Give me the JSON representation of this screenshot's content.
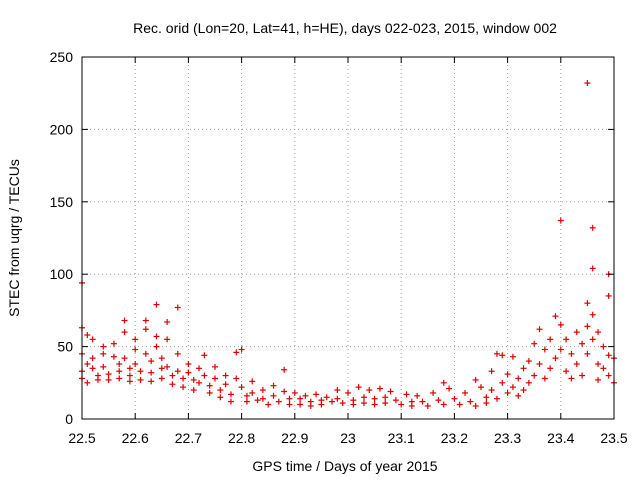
{
  "chart_data": {
    "type": "scatter",
    "title": "Rec. orid (Lon=20, Lat=41, h=HE), days 022-023, 2015, window 002",
    "xlabel": "GPS time / Days of year 2015",
    "ylabel": "STEC from uqrg / TECUs",
    "xlim": [
      22.5,
      23.5
    ],
    "ylim": [
      0,
      250
    ],
    "xticks": [
      "22.5",
      "22.6",
      "22.7",
      "22.8",
      "22.9",
      "23",
      "23.1",
      "23.2",
      "23.3",
      "23.4",
      "23.5"
    ],
    "yticks": [
      "0",
      "50",
      "100",
      "150",
      "200",
      "250"
    ],
    "xtick_values": [
      22.5,
      22.6,
      22.7,
      22.8,
      22.9,
      23.0,
      23.1,
      23.2,
      23.3,
      23.4,
      23.5
    ],
    "ytick_values": [
      0,
      50,
      100,
      150,
      200,
      250
    ],
    "grid": true,
    "marker": "+",
    "color": "#dd0000",
    "series": [
      {
        "values": [
          [
            22.5,
            94
          ],
          [
            22.5,
            63
          ],
          [
            22.51,
            58
          ],
          [
            22.5,
            45
          ],
          [
            22.51,
            38
          ],
          [
            22.5,
            33
          ],
          [
            22.5,
            28
          ],
          [
            22.51,
            25
          ],
          [
            22.52,
            55
          ],
          [
            22.52,
            42
          ],
          [
            22.52,
            35
          ],
          [
            22.53,
            30
          ],
          [
            22.53,
            27
          ],
          [
            22.54,
            50
          ],
          [
            22.54,
            45
          ],
          [
            22.54,
            36
          ],
          [
            22.55,
            31
          ],
          [
            22.55,
            27
          ],
          [
            22.56,
            52
          ],
          [
            22.56,
            43
          ],
          [
            22.57,
            38
          ],
          [
            22.57,
            33
          ],
          [
            22.57,
            28
          ],
          [
            22.58,
            68
          ],
          [
            22.58,
            60
          ],
          [
            22.58,
            42
          ],
          [
            22.59,
            35
          ],
          [
            22.59,
            30
          ],
          [
            22.59,
            26
          ],
          [
            22.6,
            55
          ],
          [
            22.6,
            48
          ],
          [
            22.6,
            38
          ],
          [
            22.61,
            33
          ],
          [
            22.61,
            27
          ],
          [
            22.62,
            68
          ],
          [
            22.62,
            62
          ],
          [
            22.62,
            45
          ],
          [
            22.63,
            40
          ],
          [
            22.63,
            32
          ],
          [
            22.63,
            26
          ],
          [
            22.64,
            79
          ],
          [
            22.64,
            57
          ],
          [
            22.64,
            50
          ],
          [
            22.65,
            42
          ],
          [
            22.65,
            35
          ],
          [
            22.65,
            28
          ],
          [
            22.66,
            67
          ],
          [
            22.66,
            55
          ],
          [
            22.66,
            36
          ],
          [
            22.67,
            30
          ],
          [
            22.67,
            24
          ],
          [
            22.68,
            77
          ],
          [
            22.68,
            45
          ],
          [
            22.68,
            33
          ],
          [
            22.69,
            28
          ],
          [
            22.69,
            22
          ],
          [
            22.7,
            38
          ],
          [
            22.7,
            32
          ],
          [
            22.71,
            27
          ],
          [
            22.71,
            20
          ],
          [
            22.72,
            35
          ],
          [
            22.72,
            25
          ],
          [
            22.73,
            44
          ],
          [
            22.73,
            30
          ],
          [
            22.74,
            23
          ],
          [
            22.74,
            18
          ],
          [
            22.75,
            36
          ],
          [
            22.75,
            28
          ],
          [
            22.76,
            20
          ],
          [
            22.76,
            15
          ],
          [
            22.77,
            30
          ],
          [
            22.77,
            24
          ],
          [
            22.78,
            17
          ],
          [
            22.78,
            12
          ],
          [
            22.79,
            46
          ],
          [
            22.79,
            28
          ],
          [
            22.8,
            48
          ],
          [
            22.8,
            22
          ],
          [
            22.81,
            16
          ],
          [
            22.81,
            12
          ],
          [
            22.82,
            26
          ],
          [
            22.82,
            18
          ],
          [
            22.83,
            13
          ],
          [
            22.84,
            20
          ],
          [
            22.84,
            14
          ],
          [
            22.85,
            10
          ],
          [
            22.86,
            23
          ],
          [
            22.86,
            16
          ],
          [
            22.87,
            12
          ],
          [
            22.88,
            34
          ],
          [
            22.88,
            19
          ],
          [
            22.89,
            14
          ],
          [
            22.89,
            10
          ],
          [
            22.9,
            18
          ],
          [
            22.91,
            14
          ],
          [
            22.91,
            10
          ],
          [
            22.92,
            16
          ],
          [
            22.93,
            12
          ],
          [
            22.93,
            9
          ],
          [
            22.94,
            17
          ],
          [
            22.95,
            13
          ],
          [
            22.95,
            10
          ],
          [
            22.96,
            15
          ],
          [
            22.97,
            12
          ],
          [
            22.98,
            20
          ],
          [
            22.98,
            14
          ],
          [
            22.99,
            11
          ],
          [
            23.0,
            18
          ],
          [
            23.01,
            13
          ],
          [
            23.01,
            10
          ],
          [
            23.02,
            22
          ],
          [
            23.03,
            15
          ],
          [
            23.03,
            11
          ],
          [
            23.04,
            20
          ],
          [
            23.05,
            14
          ],
          [
            23.05,
            10
          ],
          [
            23.06,
            21
          ],
          [
            23.07,
            15
          ],
          [
            23.07,
            11
          ],
          [
            23.08,
            19
          ],
          [
            23.09,
            13
          ],
          [
            23.1,
            10
          ],
          [
            23.11,
            17
          ],
          [
            23.12,
            12
          ],
          [
            23.12,
            9
          ],
          [
            23.13,
            16
          ],
          [
            23.14,
            12
          ],
          [
            23.15,
            9
          ],
          [
            23.16,
            18
          ],
          [
            23.17,
            13
          ],
          [
            23.18,
            25
          ],
          [
            23.18,
            10
          ],
          [
            23.19,
            21
          ],
          [
            23.2,
            14
          ],
          [
            23.21,
            10
          ],
          [
            23.22,
            18
          ],
          [
            23.23,
            12
          ],
          [
            23.24,
            27
          ],
          [
            23.24,
            9
          ],
          [
            23.25,
            22
          ],
          [
            23.26,
            15
          ],
          [
            23.26,
            11
          ],
          [
            23.27,
            33
          ],
          [
            23.27,
            20
          ],
          [
            23.28,
            45
          ],
          [
            23.28,
            14
          ],
          [
            23.29,
            44
          ],
          [
            23.29,
            25
          ],
          [
            23.3,
            31
          ],
          [
            23.3,
            18
          ],
          [
            23.31,
            43
          ],
          [
            23.31,
            22
          ],
          [
            23.32,
            28
          ],
          [
            23.32,
            16
          ],
          [
            23.33,
            35
          ],
          [
            23.33,
            20
          ],
          [
            23.34,
            40
          ],
          [
            23.34,
            25
          ],
          [
            23.35,
            52
          ],
          [
            23.35,
            30
          ],
          [
            23.36,
            62
          ],
          [
            23.36,
            38
          ],
          [
            23.37,
            48
          ],
          [
            23.37,
            28
          ],
          [
            23.38,
            55
          ],
          [
            23.38,
            35
          ],
          [
            23.39,
            71
          ],
          [
            23.39,
            42
          ],
          [
            23.4,
            137
          ],
          [
            23.4,
            65
          ],
          [
            23.4,
            48
          ],
          [
            23.41,
            55
          ],
          [
            23.41,
            33
          ],
          [
            23.42,
            45
          ],
          [
            23.42,
            28
          ],
          [
            23.43,
            60
          ],
          [
            23.43,
            38
          ],
          [
            23.44,
            52
          ],
          [
            23.44,
            30
          ],
          [
            23.45,
            232
          ],
          [
            23.45,
            80
          ],
          [
            23.45,
            64
          ],
          [
            23.45,
            45
          ],
          [
            23.46,
            132
          ],
          [
            23.46,
            104
          ],
          [
            23.46,
            72
          ],
          [
            23.46,
            55
          ],
          [
            23.47,
            60
          ],
          [
            23.47,
            38
          ],
          [
            23.47,
            27
          ],
          [
            23.48,
            50
          ],
          [
            23.48,
            35
          ],
          [
            23.49,
            100
          ],
          [
            23.49,
            85
          ],
          [
            23.49,
            44
          ],
          [
            23.49,
            30
          ],
          [
            23.5,
            42
          ],
          [
            23.5,
            25
          ]
        ]
      }
    ]
  }
}
